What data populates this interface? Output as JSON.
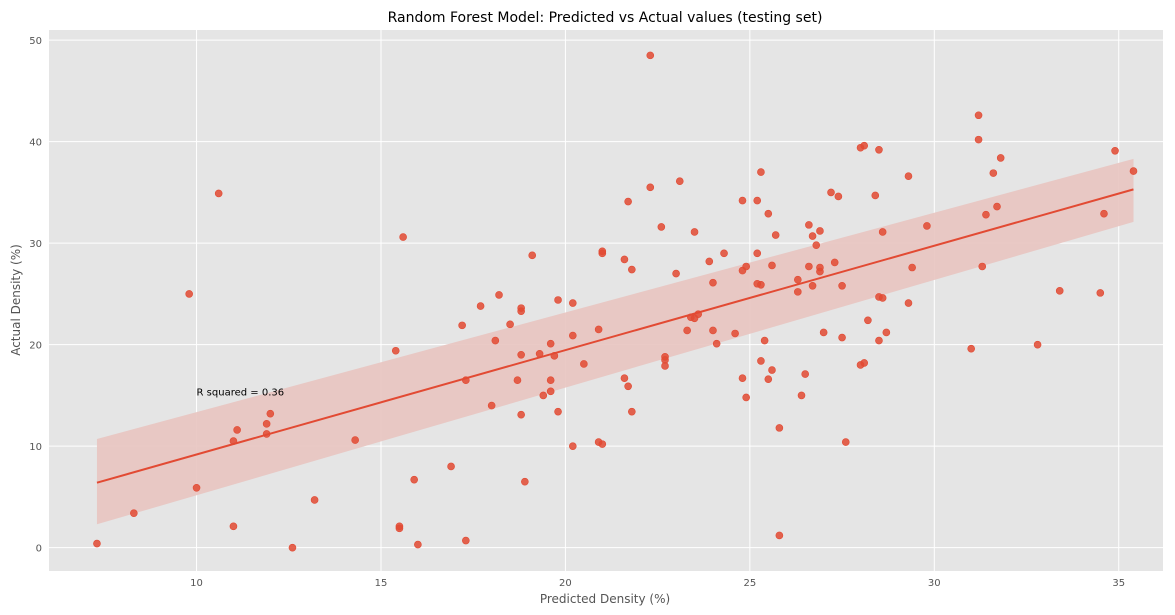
{
  "chart_data": {
    "type": "scatter",
    "title": "Random Forest Model: Predicted vs Actual values (testing set)",
    "xlabel": "Predicted Density (%)",
    "ylabel": "Actual Density (%)",
    "xlim": [
      6.0,
      36.2
    ],
    "ylim": [
      -2.3,
      51.0
    ],
    "xticks": [
      10,
      15,
      20,
      25,
      30,
      35
    ],
    "yticks": [
      0,
      10,
      20,
      30,
      40,
      50
    ],
    "grid": true,
    "annotation": {
      "text": "R squared = 0.36",
      "x": 10.0,
      "y": 15.0
    },
    "colors": {
      "background": "#e5e5e5",
      "grid": "#ffffff",
      "points": "#e24a33",
      "line": "#e24a33",
      "band": "#e8c4c0"
    },
    "regression": {
      "x_range": [
        7.3,
        35.4
      ],
      "y_at_x_min": 6.4,
      "y_at_x_max": 35.3,
      "ci_upper_at_x_min": 10.7,
      "ci_upper_at_x_max": 38.3,
      "ci_lower_at_x_min": 2.3,
      "ci_lower_at_x_max": 32.1
    },
    "points": [
      [
        7.3,
        0.4
      ],
      [
        8.3,
        3.4
      ],
      [
        9.8,
        25.0
      ],
      [
        10.0,
        5.9
      ],
      [
        10.6,
        34.9
      ],
      [
        11.0,
        10.5
      ],
      [
        11.1,
        11.6
      ],
      [
        11.0,
        2.1
      ],
      [
        11.9,
        12.2
      ],
      [
        11.9,
        11.2
      ],
      [
        12.0,
        13.2
      ],
      [
        12.6,
        0.0
      ],
      [
        13.2,
        4.7
      ],
      [
        14.3,
        10.6
      ],
      [
        15.4,
        19.4
      ],
      [
        15.5,
        1.9
      ],
      [
        15.5,
        2.1
      ],
      [
        15.6,
        30.6
      ],
      [
        15.9,
        6.7
      ],
      [
        16.0,
        0.3
      ],
      [
        16.9,
        8.0
      ],
      [
        17.2,
        21.9
      ],
      [
        17.3,
        16.5
      ],
      [
        17.3,
        0.7
      ],
      [
        17.7,
        23.8
      ],
      [
        18.0,
        14.0
      ],
      [
        18.1,
        20.4
      ],
      [
        18.2,
        24.9
      ],
      [
        18.5,
        22.0
      ],
      [
        18.7,
        16.5
      ],
      [
        18.8,
        23.6
      ],
      [
        18.8,
        23.3
      ],
      [
        18.8,
        13.1
      ],
      [
        18.8,
        19.0
      ],
      [
        18.9,
        6.5
      ],
      [
        19.1,
        28.8
      ],
      [
        19.3,
        19.1
      ],
      [
        19.4,
        15.0
      ],
      [
        19.6,
        20.1
      ],
      [
        19.6,
        16.5
      ],
      [
        19.6,
        15.4
      ],
      [
        19.7,
        18.9
      ],
      [
        19.8,
        24.4
      ],
      [
        19.8,
        13.4
      ],
      [
        20.2,
        24.1
      ],
      [
        20.2,
        20.9
      ],
      [
        20.2,
        10.0
      ],
      [
        20.5,
        18.1
      ],
      [
        20.9,
        21.5
      ],
      [
        20.9,
        10.4
      ],
      [
        21.0,
        29.0
      ],
      [
        21.0,
        29.2
      ],
      [
        21.0,
        10.2
      ],
      [
        21.6,
        16.7
      ],
      [
        21.6,
        28.4
      ],
      [
        21.7,
        34.1
      ],
      [
        21.7,
        15.9
      ],
      [
        21.8,
        27.4
      ],
      [
        21.8,
        13.4
      ],
      [
        22.3,
        48.5
      ],
      [
        22.3,
        35.5
      ],
      [
        22.6,
        31.6
      ],
      [
        22.7,
        18.5
      ],
      [
        22.7,
        17.9
      ],
      [
        22.7,
        18.8
      ],
      [
        23.0,
        27.0
      ],
      [
        23.1,
        36.1
      ],
      [
        23.3,
        21.4
      ],
      [
        23.4,
        22.7
      ],
      [
        23.5,
        22.6
      ],
      [
        23.5,
        31.1
      ],
      [
        23.6,
        23.0
      ],
      [
        23.9,
        28.2
      ],
      [
        24.0,
        26.1
      ],
      [
        24.0,
        21.4
      ],
      [
        24.1,
        20.1
      ],
      [
        24.3,
        29.0
      ],
      [
        24.6,
        21.1
      ],
      [
        24.8,
        34.2
      ],
      [
        24.8,
        27.3
      ],
      [
        24.8,
        16.7
      ],
      [
        24.9,
        27.7
      ],
      [
        24.9,
        14.8
      ],
      [
        25.2,
        34.2
      ],
      [
        25.2,
        29.0
      ],
      [
        25.2,
        26.0
      ],
      [
        25.3,
        37.0
      ],
      [
        25.3,
        25.9
      ],
      [
        25.3,
        18.4
      ],
      [
        25.4,
        20.4
      ],
      [
        25.5,
        32.9
      ],
      [
        25.5,
        16.6
      ],
      [
        25.6,
        17.5
      ],
      [
        25.6,
        27.8
      ],
      [
        25.7,
        30.8
      ],
      [
        25.8,
        11.8
      ],
      [
        25.8,
        1.2
      ],
      [
        26.3,
        26.4
      ],
      [
        26.3,
        25.2
      ],
      [
        26.4,
        15.0
      ],
      [
        26.5,
        17.1
      ],
      [
        26.6,
        31.8
      ],
      [
        26.6,
        27.7
      ],
      [
        26.7,
        30.7
      ],
      [
        26.7,
        25.8
      ],
      [
        26.8,
        29.8
      ],
      [
        26.9,
        31.2
      ],
      [
        26.9,
        27.6
      ],
      [
        26.9,
        27.2
      ],
      [
        27.0,
        21.2
      ],
      [
        27.2,
        35.0
      ],
      [
        27.3,
        28.1
      ],
      [
        27.4,
        34.6
      ],
      [
        27.5,
        25.8
      ],
      [
        27.5,
        20.7
      ],
      [
        27.6,
        10.4
      ],
      [
        28.0,
        39.4
      ],
      [
        28.0,
        18.0
      ],
      [
        28.1,
        39.6
      ],
      [
        28.1,
        18.2
      ],
      [
        28.2,
        22.4
      ],
      [
        28.4,
        34.7
      ],
      [
        28.5,
        39.2
      ],
      [
        28.5,
        24.7
      ],
      [
        28.5,
        20.4
      ],
      [
        28.6,
        31.1
      ],
      [
        28.6,
        24.6
      ],
      [
        28.7,
        21.2
      ],
      [
        29.3,
        36.6
      ],
      [
        29.3,
        24.1
      ],
      [
        29.4,
        27.6
      ],
      [
        29.8,
        31.7
      ],
      [
        31.0,
        19.6
      ],
      [
        31.2,
        42.6
      ],
      [
        31.2,
        40.2
      ],
      [
        31.3,
        27.7
      ],
      [
        31.4,
        32.8
      ],
      [
        31.6,
        36.9
      ],
      [
        31.7,
        33.6
      ],
      [
        31.8,
        38.4
      ],
      [
        32.8,
        20.0
      ],
      [
        33.4,
        25.3
      ],
      [
        34.5,
        25.1
      ],
      [
        34.6,
        32.9
      ],
      [
        34.9,
        39.1
      ],
      [
        35.4,
        37.1
      ]
    ]
  }
}
